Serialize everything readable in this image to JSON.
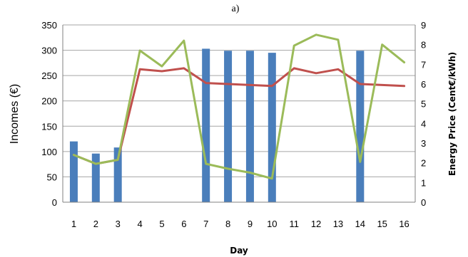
{
  "chart_data": {
    "type": "bar+line",
    "title": "a)",
    "xlabel": "Day",
    "ylabel_left": "Incomes (€)",
    "ylabel_right": "Energy Price (Cent€/kWh)",
    "categories": [
      "1",
      "2",
      "3",
      "4",
      "5",
      "6",
      "7",
      "8",
      "9",
      "10",
      "11",
      "12",
      "13",
      "14",
      "15",
      "16"
    ],
    "ylim_left": [
      0,
      350
    ],
    "yticks_left": [
      0,
      50,
      100,
      150,
      200,
      250,
      300,
      350
    ],
    "ylim_right": [
      0,
      9
    ],
    "yticks_right": [
      0,
      1,
      2,
      3,
      4,
      5,
      6,
      7,
      8,
      9
    ],
    "grid": true,
    "colors": {
      "bars": "#4a7ebb",
      "red_line": "#c0504d",
      "green_line": "#9bbb59"
    },
    "bars": {
      "axis": "left",
      "values": [
        120,
        96,
        108,
        0,
        0,
        0,
        303,
        299,
        299,
        295,
        0,
        0,
        0,
        299,
        0,
        0
      ]
    },
    "lines": [
      {
        "axis": "right",
        "color_key": "red_line",
        "values": [
          2.4,
          1.95,
          2.15,
          6.75,
          6.65,
          6.8,
          6.05,
          6.0,
          5.95,
          5.9,
          6.8,
          6.55,
          6.75,
          6.0,
          5.95,
          5.9
        ]
      },
      {
        "axis": "right",
        "color_key": "green_line",
        "values": [
          2.4,
          1.95,
          2.15,
          7.7,
          6.9,
          8.2,
          1.95,
          1.7,
          1.5,
          1.2,
          7.95,
          8.5,
          8.25,
          2.05,
          8.0,
          7.1
        ]
      }
    ]
  }
}
